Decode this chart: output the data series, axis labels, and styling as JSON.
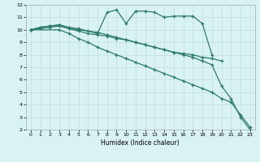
{
  "title": "",
  "xlabel": "Humidex (Indice chaleur)",
  "bg_color": "#d9f2f2",
  "grid_color": "#c0dede",
  "line_color": "#2d7a6a",
  "xlim": [
    -0.5,
    23.5
  ],
  "ylim": [
    2,
    12
  ],
  "yticks": [
    2,
    3,
    4,
    5,
    6,
    7,
    8,
    9,
    10,
    11,
    12
  ],
  "xticks": [
    0,
    1,
    2,
    3,
    4,
    5,
    6,
    7,
    8,
    9,
    10,
    11,
    12,
    13,
    14,
    15,
    16,
    17,
    18,
    19,
    20,
    21,
    22,
    23
  ],
  "series": [
    {
      "x": [
        0,
        1,
        2,
        3,
        4,
        5,
        7,
        8,
        9,
        10,
        11,
        12,
        13,
        14,
        15,
        16,
        17,
        18,
        19
      ],
      "y": [
        10.0,
        10.2,
        10.3,
        10.4,
        10.2,
        10.1,
        9.7,
        11.4,
        11.6,
        10.5,
        11.5,
        11.5,
        11.4,
        11.0,
        11.1,
        11.1,
        11.1,
        10.5,
        8.0
      ]
    },
    {
      "x": [
        0,
        1,
        2,
        3,
        4,
        5,
        6,
        7,
        8,
        9,
        10,
        11,
        12,
        13,
        14,
        15,
        16,
        17,
        18,
        19,
        20,
        21,
        22,
        23
      ],
      "y": [
        10.0,
        10.2,
        10.3,
        10.4,
        10.1,
        9.9,
        9.7,
        9.6,
        9.5,
        9.3,
        9.2,
        9.0,
        8.8,
        8.6,
        8.4,
        8.2,
        8.0,
        7.8,
        7.5,
        7.2,
        5.5,
        4.5,
        3.0,
        2.0
      ]
    },
    {
      "x": [
        0,
        1,
        2,
        3,
        4,
        5,
        6,
        7,
        8,
        9,
        10,
        11,
        12,
        13,
        14,
        15,
        16,
        17,
        18,
        19,
        20
      ],
      "y": [
        10.0,
        10.1,
        10.2,
        10.3,
        10.1,
        10.0,
        9.9,
        9.8,
        9.6,
        9.4,
        9.2,
        9.0,
        8.8,
        8.6,
        8.4,
        8.2,
        8.1,
        8.0,
        7.8,
        7.7,
        7.5
      ]
    },
    {
      "x": [
        0,
        3,
        4,
        5,
        6,
        7,
        8,
        9,
        10,
        11,
        12,
        13,
        14,
        15,
        16,
        17,
        18,
        19,
        20,
        21,
        22,
        23
      ],
      "y": [
        10.0,
        10.0,
        9.7,
        9.3,
        9.0,
        8.6,
        8.3,
        8.0,
        7.7,
        7.4,
        7.1,
        6.8,
        6.5,
        6.2,
        5.9,
        5.6,
        5.3,
        5.0,
        4.5,
        4.2,
        3.2,
        2.2
      ]
    }
  ]
}
